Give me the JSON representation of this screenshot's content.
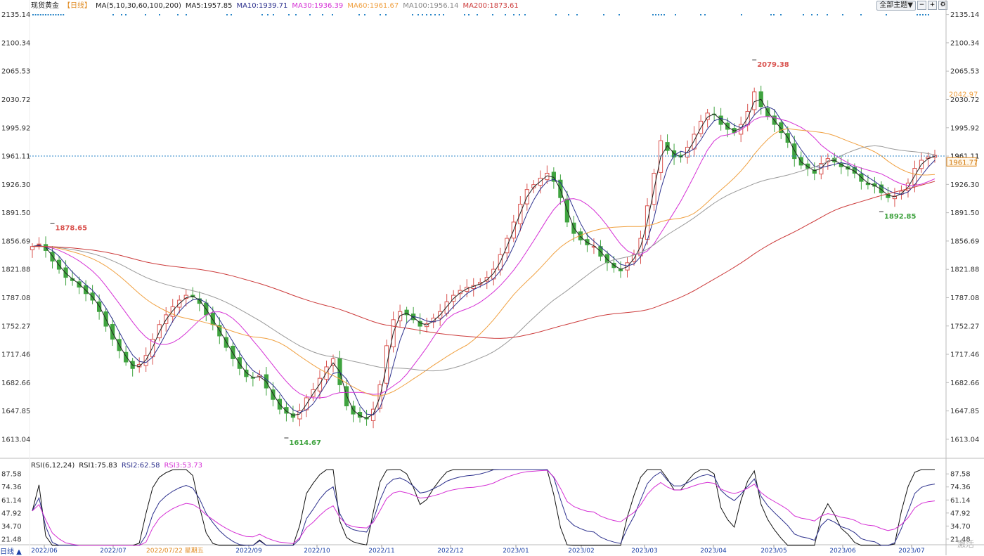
{
  "header": {
    "instrument": "现货黄金",
    "period": "【日线】",
    "ma_label": "MA(5,10,30,60,100,200)",
    "ma5": "MA5:1957.85",
    "ma10": "MA10:1939.71",
    "ma30": "MA30:1936.39",
    "ma60": "MA60:1961.67",
    "ma100": "MA100:1956.14",
    "ma200": "MA200:1873.61"
  },
  "controls": {
    "theme_button": "全部主题▼"
  },
  "rsi_header": {
    "label": "RSI(6,12,24)",
    "rsi1": "RSI1:75.83",
    "rsi2": "RSI2:62.58",
    "rsi3": "RSI3:53.73"
  },
  "footer": {
    "period_label": "日线 ▲",
    "cursor_date": "2022/07/22 星期五",
    "watermark": "激活"
  },
  "annotations": {
    "high_label": "2079.38",
    "low_label": "1614.67",
    "left_high_label": "1878.65",
    "recent_low_label": "1892.85",
    "current_line_label": "1961.11",
    "current_price_label": "1961.77",
    "ma60_label": "2042.97"
  },
  "colors": {
    "up": "#d9534f",
    "down": "#3fa33f",
    "ma5": "#222222",
    "ma10": "#2b2f8c",
    "ma30": "#d530d5",
    "ma60": "#f0a040",
    "ma100": "#999999",
    "ma200": "#cc3a3a",
    "rsi1": "#111111",
    "rsi2": "#2b2f8c",
    "rsi3": "#d530d5",
    "axis": "#bbbbbb",
    "current": "#2a86c8"
  },
  "chart_data": [
    {
      "type": "candlestick",
      "title": "现货黄金 日线",
      "ylim": [
        1600,
        2140
      ],
      "y_ticks": [
        "2135.14",
        "2100.34",
        "2065.53",
        "2030.72",
        "1995.92",
        "1961.11",
        "1926.30",
        "1891.50",
        "1856.69",
        "1821.88",
        "1787.08",
        "1752.27",
        "1717.46",
        "1682.66",
        "1647.85",
        "1613.04"
      ],
      "x_ticks": [
        "2022/06",
        "2022/07",
        "2022/09",
        "2022/10",
        "2022/11",
        "2022/12",
        "2023/01",
        "2023/02",
        "2023/03",
        "2023/04",
        "2023/05",
        "2023/06",
        "2023/07"
      ],
      "close": [
        1850,
        1853,
        1845,
        1832,
        1822,
        1812,
        1808,
        1800,
        1792,
        1784,
        1770,
        1752,
        1736,
        1722,
        1708,
        1700,
        1705,
        1716,
        1736,
        1754,
        1766,
        1776,
        1784,
        1790,
        1788,
        1780,
        1766,
        1754,
        1740,
        1726,
        1712,
        1700,
        1690,
        1688,
        1692,
        1676,
        1662,
        1650,
        1645,
        1640,
        1648,
        1664,
        1674,
        1688,
        1702,
        1712,
        1680,
        1654,
        1644,
        1640,
        1638,
        1650,
        1680,
        1728,
        1760,
        1770,
        1766,
        1760,
        1752,
        1755,
        1762,
        1770,
        1782,
        1790,
        1796,
        1800,
        1802,
        1806,
        1812,
        1822,
        1840,
        1860,
        1880,
        1902,
        1920,
        1926,
        1934,
        1940,
        1930,
        1910,
        1880,
        1866,
        1858,
        1852,
        1850,
        1838,
        1830,
        1824,
        1820,
        1830,
        1840,
        1860,
        1900,
        1940,
        1980,
        1968,
        1960,
        1960,
        1972,
        1988,
        2004,
        2014,
        2012,
        2000,
        1994,
        1990,
        2000,
        2016,
        2040,
        2022,
        2010,
        2000,
        1990,
        1978,
        1958,
        1950,
        1946,
        1940,
        1952,
        1958,
        1954,
        1948,
        1945,
        1940,
        1930,
        1926,
        1924,
        1916,
        1910,
        1912,
        1918,
        1928,
        1946,
        1956,
        1960,
        1962
      ],
      "overlay": [
        {
          "name": "MA5",
          "value": 1957.85
        },
        {
          "name": "MA10",
          "value": 1939.71
        },
        {
          "name": "MA30",
          "value": 1936.39
        },
        {
          "name": "MA60",
          "value": 1961.67
        },
        {
          "name": "MA100",
          "value": 1956.14
        },
        {
          "name": "MA200",
          "value": 1873.61
        }
      ],
      "marked_points": [
        {
          "label": "2079.38",
          "value": 2079.38,
          "date": "2023/05"
        },
        {
          "label": "1614.67",
          "value": 1614.67,
          "date": "2022/09"
        },
        {
          "label": "1878.65",
          "value": 1878.65,
          "date": "2022/06"
        },
        {
          "label": "1892.85",
          "value": 1892.85,
          "date": "2023/06"
        }
      ],
      "current_price": 1961.11
    },
    {
      "type": "line",
      "title": "RSI(6,12,24)",
      "ylim": [
        15,
        92
      ],
      "y_ticks": [
        "87.58",
        "74.36",
        "61.14",
        "47.92",
        "34.70",
        "21.48"
      ],
      "series": [
        {
          "name": "RSI1",
          "last": 75.83
        },
        {
          "name": "RSI2",
          "last": 62.58
        },
        {
          "name": "RSI3",
          "last": 53.73
        }
      ]
    }
  ]
}
